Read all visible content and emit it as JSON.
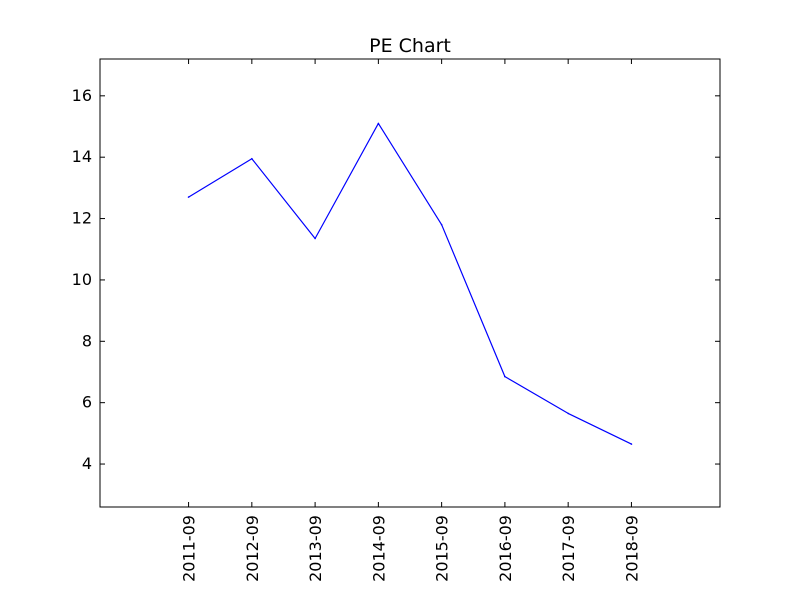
{
  "chart_data": {
    "type": "line",
    "title": "PE Chart",
    "xlabel": "",
    "ylabel": "",
    "categories": [
      "2011-09",
      "2012-09",
      "2013-09",
      "2014-09",
      "2015-09",
      "2016-09",
      "2017-09",
      "2018-09"
    ],
    "series": [
      {
        "values": [
          12.7,
          13.95,
          11.35,
          15.1,
          11.8,
          6.85,
          5.65,
          4.65
        ],
        "color": "#0000ff"
      }
    ],
    "ylim": [
      2.6,
      17.2
    ],
    "yticks": [
      4,
      6,
      8,
      10,
      12,
      14,
      16
    ],
    "xlim": [
      -1.4,
      8.4
    ],
    "grid": false,
    "legend": "none"
  }
}
